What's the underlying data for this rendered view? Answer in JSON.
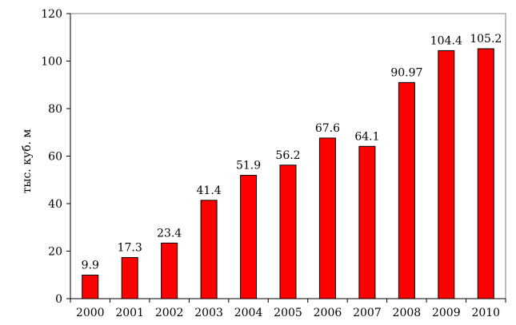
{
  "chart_data": {
    "type": "bar",
    "categories": [
      "2000",
      "2001",
      "2002",
      "2003",
      "2004",
      "2005",
      "2006",
      "2007",
      "2008",
      "2009",
      "2010"
    ],
    "values": [
      9.9,
      17.3,
      23.4,
      41.4,
      51.9,
      56.2,
      67.6,
      64.1,
      90.97,
      104.4,
      105.2
    ],
    "value_labels": [
      "9.9",
      "17.3",
      "23.4",
      "41.4",
      "51.9",
      "56.2",
      "67.6",
      "64.1",
      "90.97",
      "104.4",
      "105.2"
    ],
    "ylabel": "тыс. куб. м",
    "ylim": [
      0,
      120
    ],
    "yticks": [
      "0",
      "20",
      "40",
      "60",
      "80",
      "100",
      "120"
    ],
    "bar_color": "#ff0000",
    "bar_edge_color": "#000000",
    "grid": false,
    "legend": "none"
  }
}
